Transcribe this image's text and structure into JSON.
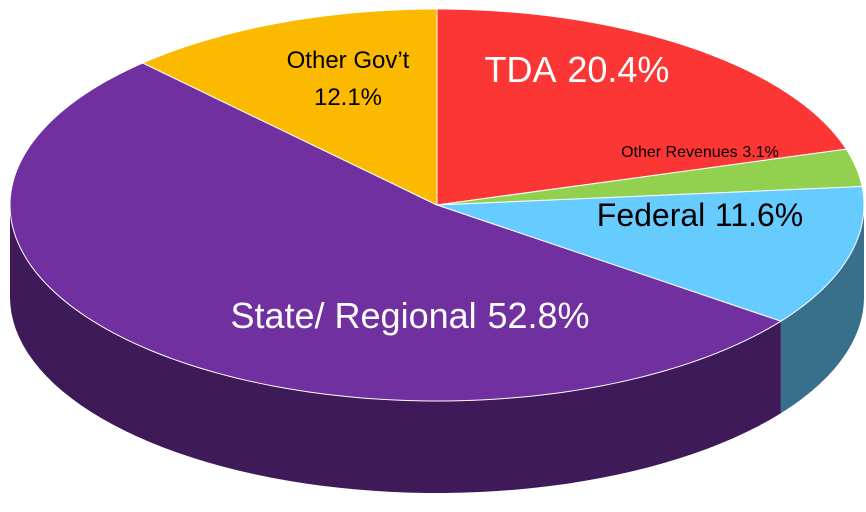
{
  "chart_data": {
    "type": "pie",
    "categories": [
      "TDA",
      "Other Revenues",
      "Federal",
      "State/ Regional",
      "Other Gov’t"
    ],
    "values": [
      20.4,
      3.1,
      11.6,
      52.8,
      12.1
    ],
    "value_labels": [
      "20.4%",
      "3.1%",
      "11.6%",
      "52.8%",
      "12.1%"
    ],
    "colors": [
      "#fc3535",
      "#92d050",
      "#66ccff",
      "#7030a0",
      "#fbba00"
    ]
  }
}
